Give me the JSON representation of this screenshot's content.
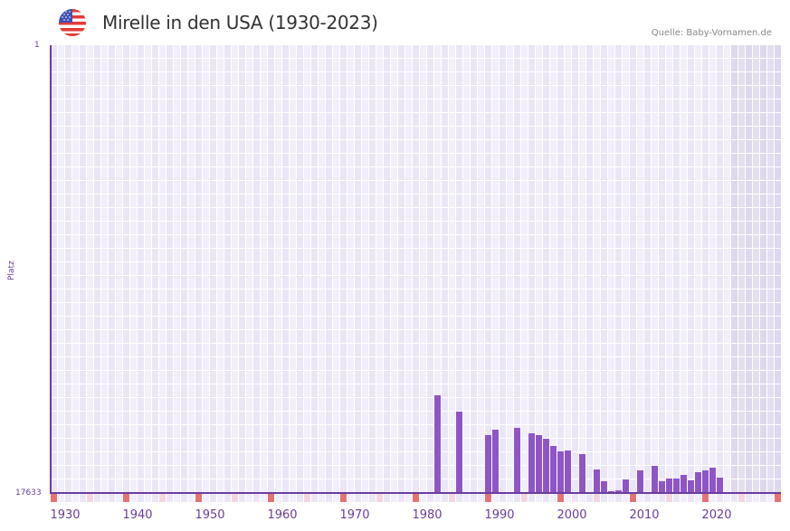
{
  "header": {
    "title": "Mirelle in den USA (1930-2023)",
    "source": "Quelle: Baby-Vornamen.de",
    "flag_icon": "us-flag-icon"
  },
  "axes": {
    "y_top_label": "1",
    "y_bottom_label": "17633",
    "y_title": "Platz",
    "x_ticks": [
      "1930",
      "1940",
      "1950",
      "1960",
      "1970",
      "1980",
      "1990",
      "2000",
      "2010",
      "2020"
    ]
  },
  "colors": {
    "bar": "#8e55c6",
    "axis": "#6a3da0",
    "grid_light": "#f2effb",
    "grid_dark": "#ebe6f6",
    "future_shade": "#e3dfee",
    "marker_decade": "#e57373",
    "marker_half": "#f5d6e0"
  },
  "chart_data": {
    "type": "bar",
    "title": "Mirelle in den USA (1930-2023)",
    "xlabel": "",
    "ylabel": "Platz",
    "y_inverted": true,
    "ylim": [
      1,
      17633
    ],
    "x_range": [
      1928,
      2028
    ],
    "grid": true,
    "legend": null,
    "annotations": [
      "Quelle: Baby-Vornamen.de"
    ],
    "x": [
      1981,
      1984,
      1988,
      1989,
      1992,
      1994,
      1995,
      1996,
      1997,
      1998,
      1999,
      2001,
      2003,
      2004,
      2005,
      2006,
      2007,
      2009,
      2011,
      2012,
      2013,
      2014,
      2015,
      2016,
      2017,
      2018,
      2019,
      2020
    ],
    "values": [
      13785,
      14426,
      15352,
      15138,
      15067,
      15281,
      15352,
      15495,
      15780,
      15993,
      15958,
      16100,
      16706,
      17169,
      17561,
      17525,
      17098,
      16742,
      16563,
      17169,
      17062,
      17062,
      16920,
      17133,
      16813,
      16742,
      16635,
      17027
    ]
  }
}
